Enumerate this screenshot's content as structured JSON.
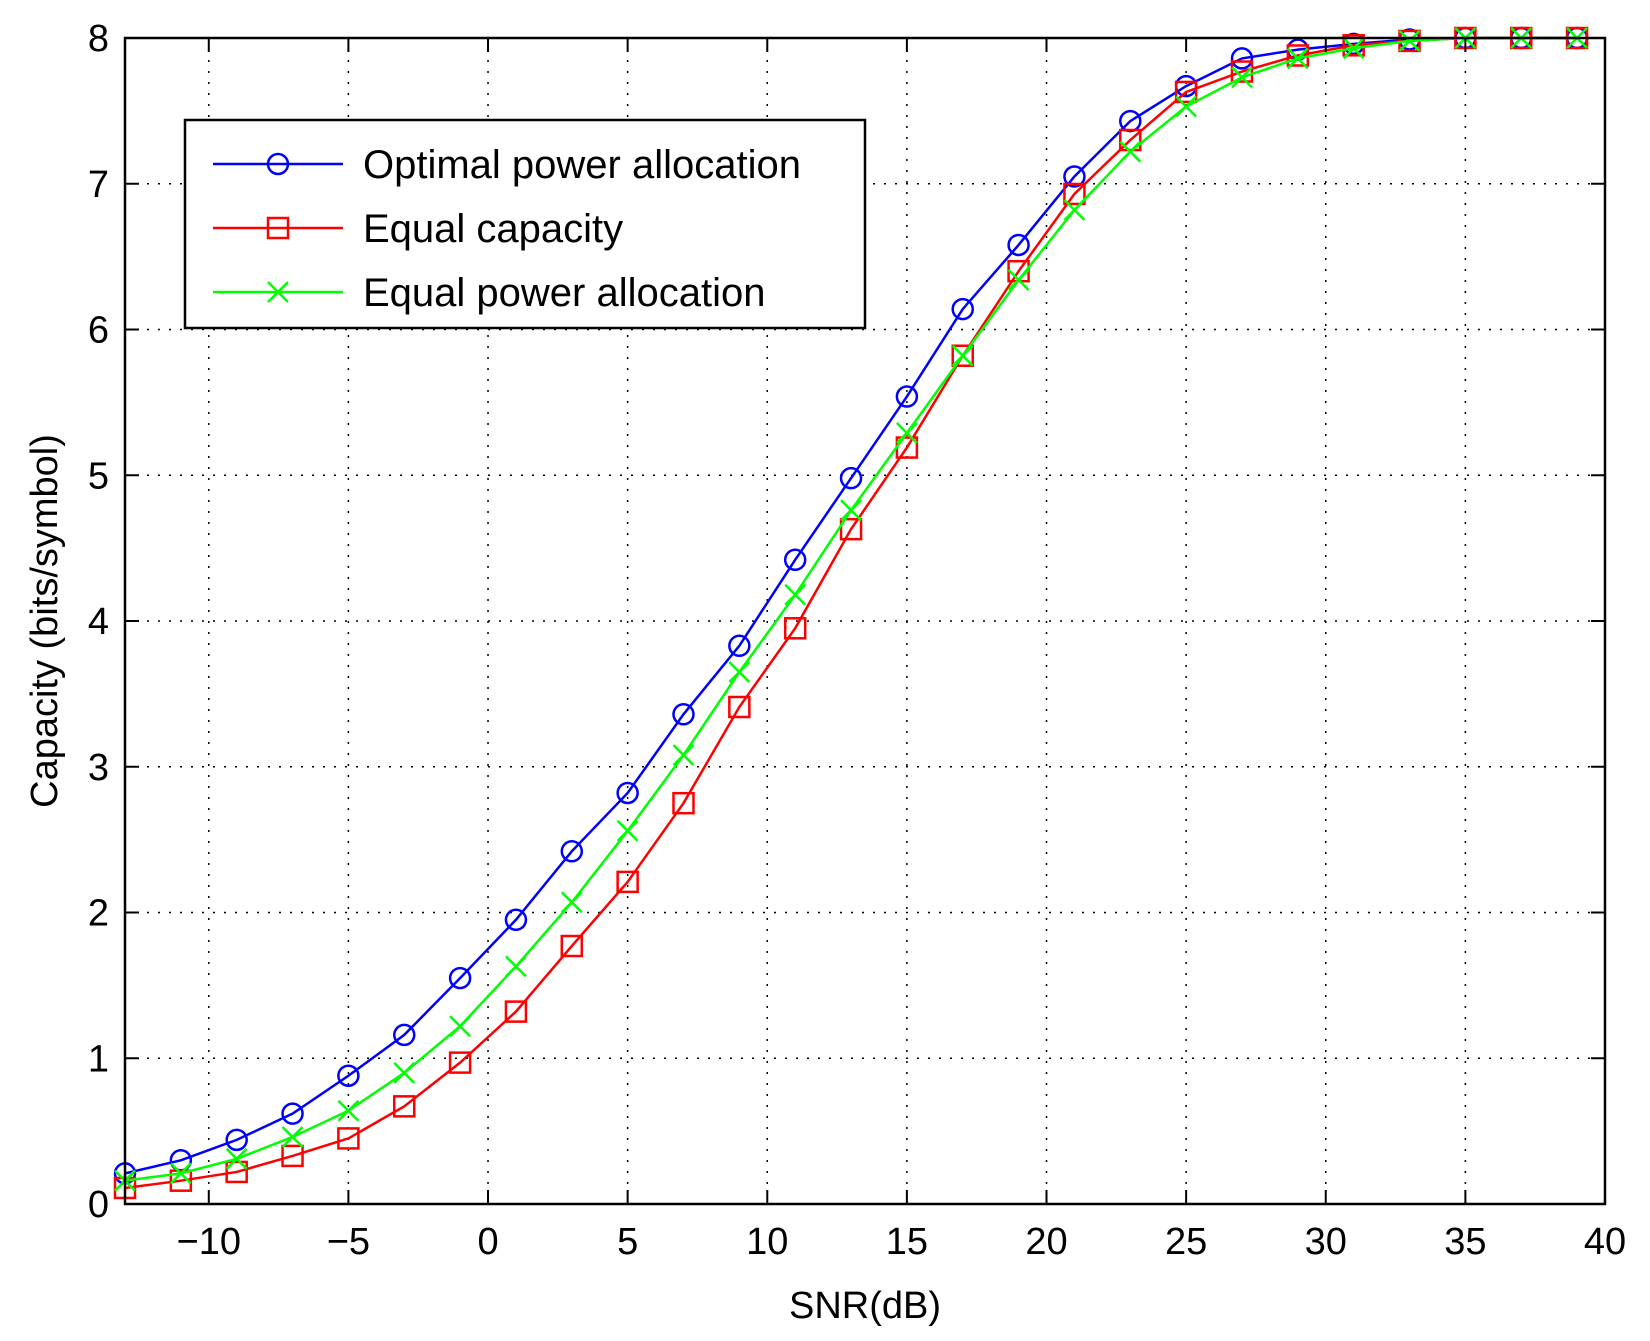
{
  "chart_data": {
    "type": "line",
    "title": "",
    "xlabel": "SNR(dB)",
    "ylabel": "Capacity (bits/symbol)",
    "xlim": [
      -13,
      40
    ],
    "ylim": [
      0,
      8
    ],
    "xticks": [
      -10,
      -5,
      0,
      5,
      10,
      15,
      20,
      25,
      30,
      35,
      40
    ],
    "xtick_labels": [
      "−10",
      "−5",
      "0",
      "5",
      "10",
      "15",
      "20",
      "25",
      "30",
      "35",
      "40"
    ],
    "yticks": [
      0,
      1,
      2,
      3,
      4,
      5,
      6,
      7,
      8
    ],
    "ytick_labels": [
      "0",
      "1",
      "2",
      "3",
      "4",
      "5",
      "6",
      "7",
      "8"
    ],
    "grid": true,
    "legend_position": "top-left",
    "x": [
      -13,
      -11,
      -9,
      -7,
      -5,
      -3,
      -1,
      1,
      3,
      5,
      7,
      9,
      11,
      13,
      15,
      17,
      19,
      21,
      23,
      25,
      27,
      29,
      31,
      33,
      35,
      37,
      39
    ],
    "series": [
      {
        "name": "Optimal power allocation",
        "color": "#0000ff",
        "marker": "circle",
        "values": [
          0.21,
          0.3,
          0.44,
          0.62,
          0.88,
          1.16,
          1.55,
          1.95,
          2.42,
          2.82,
          3.36,
          3.83,
          4.42,
          4.98,
          5.54,
          6.14,
          6.58,
          7.05,
          7.43,
          7.67,
          7.86,
          7.92,
          7.96,
          7.99,
          8.0,
          8.0,
          8.0
        ]
      },
      {
        "name": "Equal capacity",
        "color": "#ff0000",
        "marker": "square",
        "values": [
          0.11,
          0.16,
          0.22,
          0.33,
          0.45,
          0.67,
          0.97,
          1.32,
          1.77,
          2.21,
          2.75,
          3.41,
          3.95,
          4.63,
          5.19,
          5.82,
          6.4,
          6.93,
          7.3,
          7.63,
          7.77,
          7.88,
          7.95,
          7.98,
          8.0,
          8.0,
          8.0
        ]
      },
      {
        "name": "Equal power allocation",
        "color": "#00ff00",
        "marker": "x",
        "values": [
          0.16,
          0.21,
          0.31,
          0.46,
          0.64,
          0.9,
          1.22,
          1.63,
          2.07,
          2.56,
          3.08,
          3.65,
          4.18,
          4.76,
          5.29,
          5.82,
          6.34,
          6.82,
          7.22,
          7.53,
          7.73,
          7.86,
          7.93,
          7.98,
          8.0,
          8.0,
          8.0
        ]
      }
    ]
  }
}
